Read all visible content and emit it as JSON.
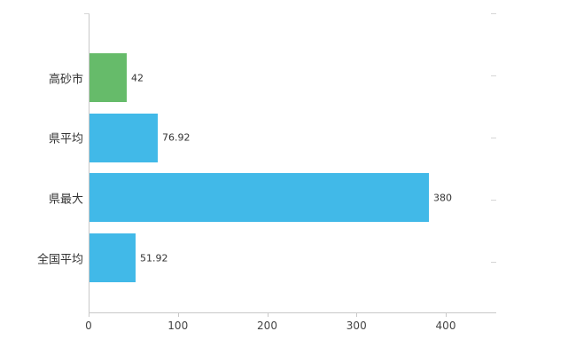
{
  "chart_data": {
    "type": "bar",
    "orientation": "horizontal",
    "title": "",
    "categories": [
      "高砂市",
      "県平均",
      "県最大",
      "全国平均"
    ],
    "values": [
      42,
      76.92,
      380,
      51.92
    ],
    "value_labels": [
      "42",
      "76.92",
      "380",
      "51.92"
    ],
    "bar_colors": [
      "#66bb6a",
      "#41b9e8",
      "#41b9e8",
      "#41b9e8"
    ],
    "xticks": [
      0,
      100,
      200,
      300,
      400
    ],
    "xlim": [
      0,
      457
    ],
    "grid": false,
    "legend": null,
    "xlabel": "",
    "ylabel": ""
  },
  "style": {
    "axis_color": "#c8c8c8",
    "label_color": "#333333",
    "background": "#ffffff"
  }
}
